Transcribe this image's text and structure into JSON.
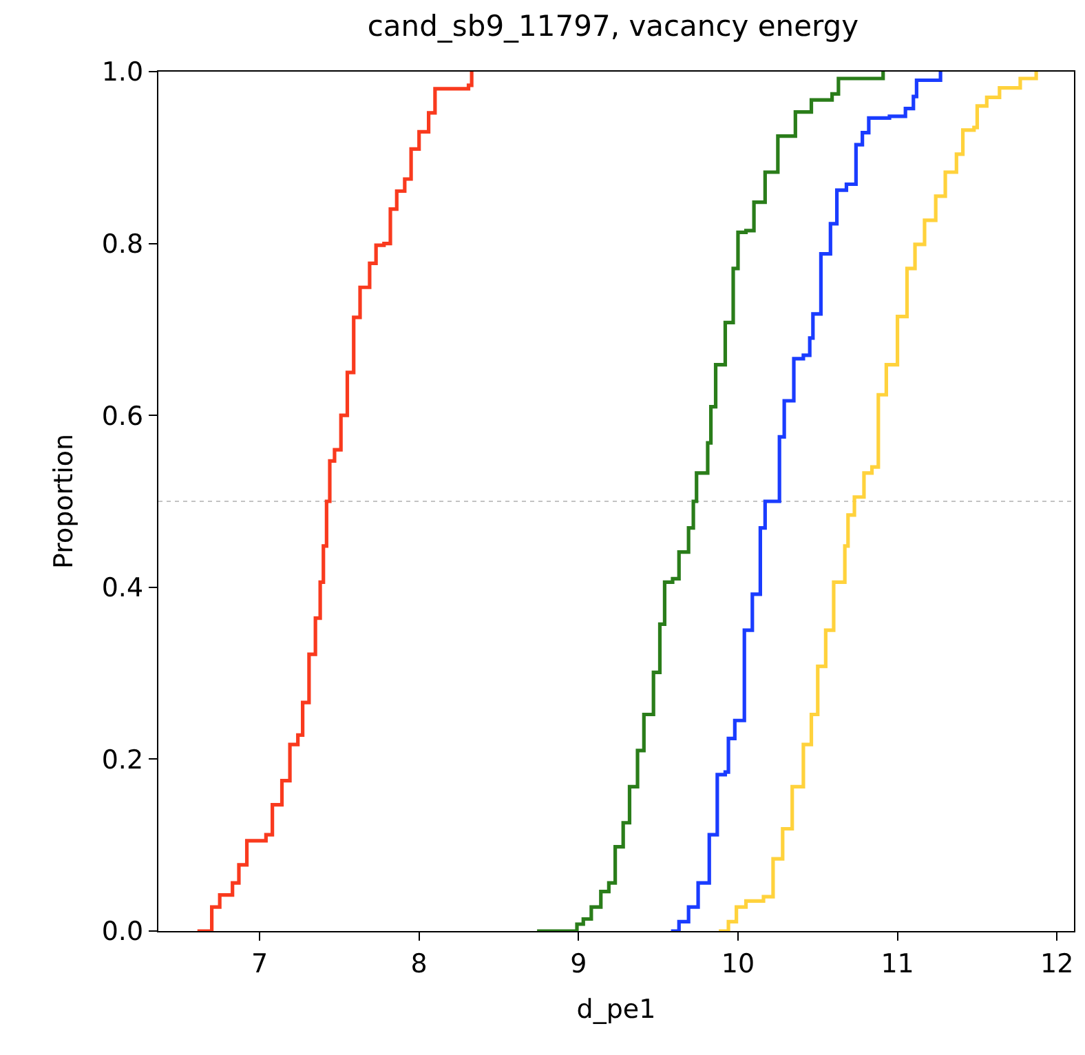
{
  "chart_data": {
    "type": "step",
    "title": "cand_sb9_11797, vacancy energy",
    "xlabel": "d_pe1",
    "ylabel": "Proportion",
    "xlim": [
      6.365,
      12.107
    ],
    "xticks": [
      7,
      8,
      9,
      10,
      11,
      12
    ],
    "ylim": [
      0,
      1
    ],
    "yticks": [
      {
        "value": 0,
        "label": "0.0"
      },
      {
        "value": 0.2,
        "label": "0.2"
      },
      {
        "value": 0.4,
        "label": "0.4"
      },
      {
        "value": 0.6,
        "label": "0.6"
      },
      {
        "value": 0.8,
        "label": "0.8"
      },
      {
        "value": 1,
        "label": "1.0"
      }
    ],
    "grid": false,
    "ref_lines": [
      {
        "axis": "y",
        "value": 0.5,
        "color": "#b0b0b0",
        "line_style": "dotted"
      }
    ],
    "series": [
      {
        "color": "#f93a1e",
        "x": [
          6.61,
          6.7,
          6.75,
          6.83,
          6.87,
          6.92,
          7.04,
          7.08,
          7.14,
          7.19,
          7.24,
          7.27,
          7.31,
          7.35,
          7.38,
          7.4,
          7.42,
          7.44,
          7.47,
          7.51,
          7.55,
          7.59,
          7.63,
          7.69,
          7.73,
          7.78,
          7.82,
          7.86,
          7.91,
          7.95,
          8.0,
          8.06,
          8.1,
          8.31,
          8.33
        ],
        "values": [
          0,
          0.028,
          0.042,
          0.056,
          0.077,
          0.105,
          0.112,
          0.147,
          0.175,
          0.217,
          0.228,
          0.266,
          0.322,
          0.364,
          0.406,
          0.448,
          0.5,
          0.547,
          0.56,
          0.6,
          0.65,
          0.714,
          0.749,
          0.777,
          0.798,
          0.8,
          0.84,
          0.861,
          0.875,
          0.91,
          0.93,
          0.952,
          0.98,
          0.984,
          1.0
        ]
      },
      {
        "color": "#2a7d1a",
        "x": [
          8.74,
          8.99,
          9.03,
          9.08,
          9.14,
          9.19,
          9.23,
          9.28,
          9.32,
          9.37,
          9.41,
          9.47,
          9.51,
          9.54,
          9.59,
          9.63,
          9.69,
          9.72,
          9.74,
          9.81,
          9.83,
          9.86,
          9.92,
          9.97,
          10.0,
          10.05,
          10.1,
          10.17,
          10.25,
          10.36,
          10.46,
          10.59,
          10.63,
          10.91
        ],
        "values": [
          0,
          0.008,
          0.014,
          0.028,
          0.046,
          0.056,
          0.098,
          0.126,
          0.168,
          0.21,
          0.252,
          0.301,
          0.357,
          0.406,
          0.41,
          0.441,
          0.469,
          0.5,
          0.533,
          0.568,
          0.61,
          0.659,
          0.708,
          0.771,
          0.813,
          0.815,
          0.848,
          0.883,
          0.925,
          0.953,
          0.967,
          0.974,
          0.992,
          1.0
        ]
      },
      {
        "color": "#1a3cff",
        "x": [
          9.58,
          9.63,
          9.69,
          9.75,
          9.82,
          9.87,
          9.92,
          9.94,
          9.98,
          10.04,
          10.09,
          10.14,
          10.17,
          10.26,
          10.29,
          10.35,
          10.41,
          10.45,
          10.47,
          10.52,
          10.58,
          10.62,
          10.68,
          10.74,
          10.78,
          10.82,
          10.95,
          11.05,
          11.1,
          11.12,
          11.27
        ],
        "values": [
          0,
          0.011,
          0.028,
          0.056,
          0.112,
          0.182,
          0.185,
          0.224,
          0.245,
          0.35,
          0.392,
          0.469,
          0.5,
          0.575,
          0.617,
          0.666,
          0.67,
          0.69,
          0.718,
          0.788,
          0.823,
          0.862,
          0.869,
          0.915,
          0.929,
          0.946,
          0.948,
          0.957,
          0.971,
          0.99,
          1.0
        ]
      },
      {
        "color": "#ffd23c",
        "x": [
          9.88,
          9.94,
          9.99,
          10.05,
          10.16,
          10.22,
          10.28,
          10.34,
          10.41,
          10.46,
          10.5,
          10.55,
          10.6,
          10.67,
          10.69,
          10.73,
          10.79,
          10.84,
          10.88,
          10.93,
          11.0,
          11.06,
          11.11,
          11.17,
          11.24,
          11.3,
          11.37,
          11.41,
          11.48,
          11.5,
          11.56,
          11.64,
          11.77,
          11.87
        ],
        "values": [
          0,
          0.011,
          0.028,
          0.035,
          0.04,
          0.084,
          0.119,
          0.168,
          0.217,
          0.252,
          0.308,
          0.35,
          0.406,
          0.448,
          0.484,
          0.505,
          0.533,
          0.54,
          0.624,
          0.659,
          0.715,
          0.771,
          0.799,
          0.827,
          0.855,
          0.883,
          0.904,
          0.932,
          0.935,
          0.96,
          0.97,
          0.981,
          0.992,
          1.0
        ]
      }
    ]
  }
}
